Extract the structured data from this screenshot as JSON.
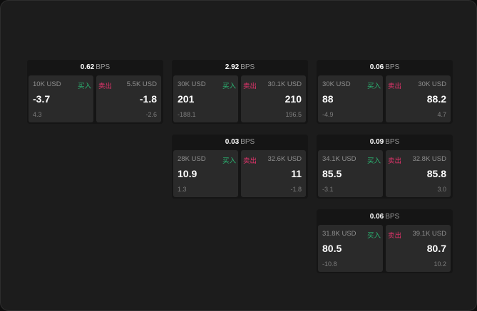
{
  "unit_label": "BPS",
  "buy_label": "买入",
  "sell_label": "卖出",
  "colors": {
    "buy": "#2bb673",
    "sell": "#e2336b"
  },
  "cards": [
    {
      "spread": "0.62",
      "buy": {
        "size": "10K USD",
        "price": "-3.7",
        "change": "4.3"
      },
      "sell": {
        "size": "5.5K USD",
        "price": "-1.8",
        "change": "-2.6"
      }
    },
    {
      "spread": "2.92",
      "buy": {
        "size": "30K USD",
        "price": "201",
        "change": "-188.1"
      },
      "sell": {
        "size": "30.1K USD",
        "price": "210",
        "change": "196.5"
      }
    },
    {
      "spread": "0.06",
      "buy": {
        "size": "30K USD",
        "price": "88",
        "change": "-4.9"
      },
      "sell": {
        "size": "30K USD",
        "price": "88.2",
        "change": "4.7"
      }
    },
    {
      "spread": "0.03",
      "buy": {
        "size": "28K USD",
        "price": "10.9",
        "change": "1.3"
      },
      "sell": {
        "size": "32.6K USD",
        "price": "11",
        "change": "-1.8"
      }
    },
    {
      "spread": "0.09",
      "buy": {
        "size": "34.1K USD",
        "price": "85.5",
        "change": "-3.1"
      },
      "sell": {
        "size": "32.8K USD",
        "price": "85.8",
        "change": "3.0"
      }
    },
    {
      "spread": "0.06",
      "buy": {
        "size": "31.8K USD",
        "price": "80.5",
        "change": "-10.8"
      },
      "sell": {
        "size": "39.1K USD",
        "price": "80.7",
        "change": "10.2"
      }
    }
  ]
}
